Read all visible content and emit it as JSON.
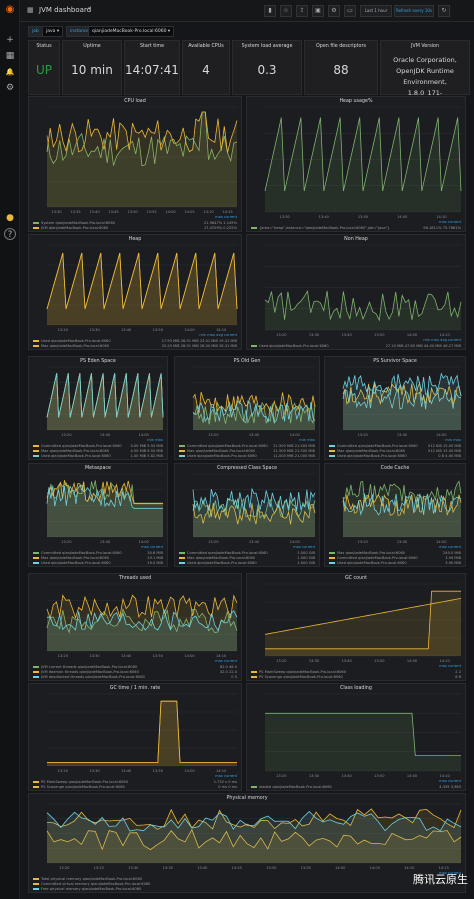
{
  "app": {
    "title": "JVM dashboard",
    "chevron": "▾"
  },
  "toolbar": {
    "time_range": "Last 1 hour",
    "refresh": "Refresh every 10s"
  },
  "variables": [
    {
      "label": "job",
      "value": "java ▾"
    },
    {
      "label": "instance",
      "value": "qianjiadeMacBook-Pro.local:6060 ▾"
    }
  ],
  "stats": [
    {
      "title": "Status",
      "value": "UP",
      "color": "#299c46",
      "big": true
    },
    {
      "title": "Uptime",
      "value": "10 min",
      "color": "#d8d9da",
      "big": true
    },
    {
      "title": "Start time",
      "value": "14:07:41",
      "color": "#d8d9da",
      "big": true
    },
    {
      "title": "Available CPUs",
      "value": "4",
      "color": "#d8d9da",
      "big": true
    },
    {
      "title": "System load average",
      "value": "0.3",
      "color": "#d8d9da",
      "big": true
    },
    {
      "title": "Open file descriptors",
      "value": "88",
      "color": "#d8d9da",
      "big": true
    },
    {
      "title": "JVM Version",
      "value": "Oracle Corporation, OpenJDK Runtime Environment, 1.8.0_171-",
      "color": "#d8d9da",
      "big": false
    }
  ],
  "panels": [
    {
      "title": "CPU load",
      "legend": [
        "System qianjiadeMacBook-Pro.local:6060",
        "JVM qianjiadeMacBook-Pro.local:6060"
      ],
      "legend_head": "max    current",
      "legend_vals": [
        "21.9847%   1.149%",
        "17.4709%   0.225%"
      ],
      "ticks": [
        "13:30",
        "13:35",
        "13:40",
        "13:45",
        "13:50",
        "13:55",
        "14:00",
        "14:05",
        "14:10",
        "14:15"
      ],
      "color": "#7eb26d"
    },
    {
      "title": "Heap usage%",
      "legend": [
        "{area=\"heap\",instance=\"qianjiadeMacBook-Pro.local:6060\",job=\"java\"}"
      ],
      "legend_head": "max    current",
      "legend_vals": [
        "98.1811%   75.7661%"
      ],
      "ticks": [
        "13:30",
        "13:40",
        "13:50",
        "14:00",
        "14:10"
      ],
      "color": "#7eb26d"
    },
    {
      "title": "Heap",
      "legend": [
        "Used qianjiadeMacBook-Pro.local:6060",
        "Max qianjiadeMacBook-Pro.local:6060"
      ],
      "legend_head": "min    max    avg    current",
      "legend_vals": [
        "17.93 MiB  28.91 MiB  23.01 MiB  19.31 MiB",
        "25.29 MiB  28.91 MiB  28.00 MiB  28.31 MiB"
      ],
      "ticks": [
        "13:20",
        "13:30",
        "13:40",
        "13:50",
        "14:00",
        "14:10"
      ],
      "color": "#eab839"
    },
    {
      "title": "Non Heap",
      "legend": [
        "Used qianjiadeMacBook-Pro.local:6060"
      ],
      "legend_head": "min    max    avg    current",
      "legend_vals": [
        "27.10 MiB  47.80 MiB  44.00 MiB  46.27 MiB"
      ],
      "ticks": [
        "13:20",
        "13:30",
        "13:40",
        "13:50",
        "14:00",
        "14:10"
      ],
      "color": "#7eb26d"
    },
    {
      "title": "PS Eden Space",
      "legend": [
        "Committed qianjiadeMacBook-Pro.local:6060",
        "Max qianjiadeMacBook-Pro.local:6060",
        "Used qianjiadeMacBook-Pro.local:6060"
      ],
      "legend_head": "min    max",
      "legend_vals": [
        "4.00 MiB   5.50 MiB",
        "4.50 MiB   6.50 MiB",
        "1.00 MiB   5.82 MiB"
      ],
      "ticks": [
        "13:20",
        "13:40",
        "14:00"
      ],
      "color": "#eab839"
    },
    {
      "title": "PS Old Gen",
      "legend": [
        "Committed qianjiadeMacBook-Pro.local:6060",
        "Max qianjiadeMacBook-Pro.local:6060",
        "Used qianjiadeMacBook-Pro.local:6060"
      ],
      "legend_head": "min    max",
      "legend_vals": [
        "21.500 MiB  21.500 MiB",
        "21.500 MiB  21.500 MiB",
        "11.000 MiB  21.000 MiB"
      ],
      "ticks": [
        "13:20",
        "13:40",
        "14:00"
      ],
      "color": "#7eb26d"
    },
    {
      "title": "PS Survivor Space",
      "legend": [
        "Committed qianjiadeMacBook-Pro.local:6060",
        "Max qianjiadeMacBook-Pro.local:6060",
        "Used qianjiadeMacBook-Pro.local:6060"
      ],
      "legend_head": "min    max",
      "legend_vals": [
        "512 KiB   15.00 MiB",
        "512 KiB   15.00 MiB",
        "0 B   4.00 MiB"
      ],
      "ticks": [
        "13:20",
        "13:40",
        "14:00"
      ],
      "color": "#6ed0e0"
    },
    {
      "title": "Metaspace",
      "legend": [
        "Committed qianjiadeMacBook-Pro.local:6060",
        "Max qianjiadeMacBook-Pro.local:6060",
        "Used qianjiadeMacBook-Pro.local:6060"
      ],
      "legend_head": "max    current",
      "legend_vals": [
        "30.6 MiB",
        "19.1 MiB",
        "19.0 MiB"
      ],
      "ticks": [
        "13:20",
        "13:40",
        "14:00"
      ],
      "color": "#7eb26d"
    },
    {
      "title": "Compressed Class Space",
      "legend": [
        "Committed qianjiadeMacBook-Pro.local:6060",
        "Max qianjiadeMacBook-Pro.local:6060",
        "Used qianjiadeMacBook-Pro.local:6060"
      ],
      "legend_head": "max    current",
      "legend_vals": [
        "1.000 GiB",
        "1.000 GiB",
        "1.000 GiB"
      ],
      "ticks": [
        "13:20",
        "13:40",
        "14:00"
      ],
      "color": "#7eb26d"
    },
    {
      "title": "Code Cache",
      "legend": [
        "Max qianjiadeMacBook-Pro.local:6060",
        "Committed qianjiadeMacBook-Pro.local:6060",
        "Used qianjiadeMacBook-Pro.local:6060"
      ],
      "legend_head": "max    current",
      "legend_vals": [
        "240.0 MiB",
        "3.94 MiB",
        "3.90 MiB"
      ],
      "ticks": [
        "13:20",
        "13:40",
        "14:00"
      ],
      "color": "#7eb26d"
    },
    {
      "title": "Threads used",
      "legend": [
        "JVM current threads qianjiadeMacBook-Pro.local:6060",
        "JVM daemon threads qianjiadeMacBook-Pro.local:6060",
        "JVM deadlocked threads qianjiadeMacBook-Pro.local:6060"
      ],
      "legend_head": "max    current",
      "legend_vals": [
        "62.0   48.0",
        "32.0   22.0",
        "0   0"
      ],
      "ticks": [
        "13:20",
        "13:30",
        "13:40",
        "13:50",
        "14:00",
        "14:10"
      ],
      "color": "#7eb26d"
    },
    {
      "title": "GC count",
      "legend": [
        "PS MarkSweep qianjiadeMacBook-Pro.local:6060",
        "PS Scavenge qianjiadeMacBook-Pro.local:6060"
      ],
      "legend_head": "max    current",
      "legend_vals": [
        "2   2",
        "6   6"
      ],
      "ticks": [
        "13:20",
        "13:30",
        "13:40",
        "13:50",
        "14:00",
        "14:10"
      ],
      "color": "#eab839"
    },
    {
      "title": "GC time / 1 min. rate",
      "legend": [
        "PS MarkSweep qianjiadeMacBook-Pro.local:6060",
        "PS Scavenge qianjiadeMacBook-Pro.local:6060"
      ],
      "legend_head": "max    current",
      "legend_vals": [
        "1.752 s   0 ms",
        "0 ms   0 ms"
      ],
      "ticks": [
        "13:20",
        "13:30",
        "13:40",
        "13:50",
        "14:00",
        "14:10"
      ],
      "color": "#eab839"
    },
    {
      "title": "Class loading",
      "legend": [
        "loaded qianjiadeMacBook-Pro.local:6060"
      ],
      "legend_head": "max    current",
      "legend_vals": [
        "4,335   3,983"
      ],
      "ticks": [
        "13:20",
        "13:30",
        "13:40",
        "13:50",
        "14:00",
        "14:10"
      ],
      "color": "#7eb26d"
    },
    {
      "title": "Physical memory",
      "legend": [
        "Total physical memory qianjiadeMacBook-Pro.local:6060",
        "Committed virtual memory qianjiadeMacBook-Pro.local:6060",
        "Free physical memory qianjiadeMacBook-Pro.local:6060"
      ],
      "legend_head": "max    current",
      "legend_vals": [
        "",
        "",
        ""
      ],
      "ticks": [
        "13:20",
        "13:25",
        "13:30",
        "13:35",
        "13:40",
        "13:45",
        "13:50",
        "13:55",
        "14:00",
        "14:05",
        "14:10",
        "14:15"
      ],
      "color": "#eab839"
    }
  ],
  "watermark": "腾讯云原生",
  "icons": {
    "logo": "grafana-logo",
    "plus": "+",
    "grid": "▦",
    "bell": "🔔",
    "gear": "⚙",
    "help": "?"
  }
}
